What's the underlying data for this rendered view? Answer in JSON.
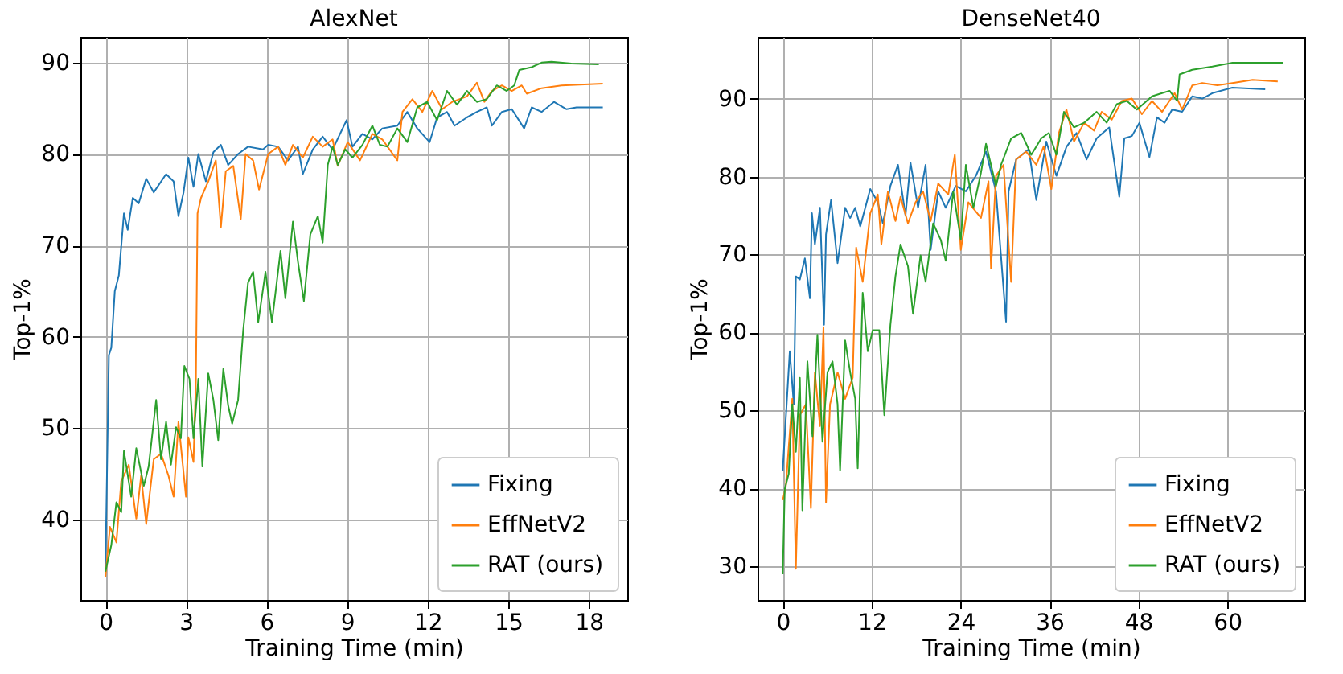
{
  "chart_data": [
    {
      "type": "line",
      "title": "AlexNet",
      "xlabel": "Training Time (min)",
      "ylabel": "Top-1%",
      "xlim": [
        -0.93,
        19.43
      ],
      "ylim": [
        31.2,
        92.8
      ],
      "xticks": [
        0,
        3,
        6,
        9,
        12,
        15,
        18
      ],
      "yticks": [
        40,
        50,
        60,
        70,
        80,
        90
      ],
      "grid": true,
      "legend": "bottom right",
      "series": [
        {
          "name": "Fixing",
          "color": "#1f77b4",
          "x": [
            0,
            0.13,
            0.22,
            0.35,
            0.5,
            0.69,
            0.83,
            1.02,
            1.24,
            1.52,
            1.8,
            2.26,
            2.54,
            2.72,
            2.91,
            3.09,
            3.28,
            3.46,
            3.74,
            4.02,
            4.3,
            4.57,
            4.94,
            5.31,
            5.87,
            6.06,
            6.43,
            6.8,
            7.17,
            7.35,
            7.72,
            8.09,
            8.46,
            8.98,
            9.2,
            9.57,
            9.94,
            10.31,
            10.87,
            11.24,
            11.61,
            12.07,
            12.35,
            12.72,
            13,
            13.46,
            13.83,
            14.2,
            14.39,
            14.76,
            15.13,
            15.59,
            15.87,
            16.24,
            16.7,
            17.17,
            17.54,
            18.52
          ],
          "values": [
            34.3,
            58,
            58.8,
            65,
            66.7,
            73.5,
            71.7,
            75.2,
            74.6,
            77.3,
            75.8,
            77.8,
            77,
            73.2,
            75.8,
            79.6,
            76.4,
            80,
            77,
            80.2,
            81,
            78.8,
            80,
            80.8,
            80.5,
            81,
            80.8,
            79.3,
            80.8,
            77.8,
            80.5,
            81.9,
            80.5,
            83.7,
            80.8,
            82.2,
            81.6,
            82.8,
            83.1,
            84.6,
            82.8,
            81.3,
            84,
            84.6,
            83.1,
            84,
            84.6,
            85.1,
            83.1,
            84.6,
            84.9,
            82.8,
            85.1,
            84.6,
            85.7,
            84.9,
            85.1,
            85.1
          ]
        },
        {
          "name": "EffNetV2",
          "color": "#ff7f0e",
          "x": [
            0,
            0.17,
            0.41,
            0.59,
            0.87,
            1.15,
            1.33,
            1.52,
            1.8,
            2.07,
            2.35,
            2.54,
            2.72,
            3,
            3.09,
            3.28,
            3.37,
            3.43,
            3.56,
            3.83,
            4.11,
            4.3,
            4.48,
            4.76,
            5.04,
            5.22,
            5.5,
            5.72,
            6.06,
            6.43,
            6.7,
            6.98,
            7.35,
            7.72,
            8.09,
            8.46,
            8.65,
            9.02,
            9.48,
            9.94,
            10.31,
            10.87,
            11.06,
            11.43,
            11.8,
            12.17,
            12.54,
            12.91,
            13.46,
            13.83,
            14.11,
            14.39,
            14.76,
            15.13,
            15.5,
            15.69,
            16.24,
            16.98,
            18.52
          ],
          "values": [
            33.7,
            39.2,
            37.5,
            44.2,
            46,
            40.1,
            44.8,
            39.5,
            46.6,
            47.2,
            44.8,
            42.5,
            50.7,
            42.5,
            49,
            46.3,
            55.4,
            73.5,
            75.2,
            77,
            79.3,
            72,
            78.1,
            78.7,
            72.9,
            80,
            79.3,
            76.1,
            80,
            80.8,
            78.8,
            81,
            79.6,
            81.9,
            80.8,
            81.6,
            78.7,
            81.3,
            79.3,
            82.2,
            81.6,
            79.3,
            84.6,
            86,
            84.6,
            86.9,
            84.9,
            85.7,
            86.3,
            87.8,
            85.7,
            86.9,
            87.5,
            86.9,
            87.5,
            86.6,
            87.2,
            87.5,
            87.7
          ]
        },
        {
          "name": "RAT (ours)",
          "color": "#2ca02c",
          "x": [
            0,
            0.22,
            0.41,
            0.59,
            0.69,
            0.96,
            1.15,
            1.43,
            1.61,
            1.89,
            2.07,
            2.26,
            2.44,
            2.63,
            2.81,
            2.94,
            3.13,
            3.28,
            3.46,
            3.61,
            3.83,
            4.02,
            4.2,
            4.39,
            4.57,
            4.72,
            4.94,
            5.13,
            5.31,
            5.5,
            5.69,
            5.96,
            6.2,
            6.52,
            6.7,
            6.98,
            7.17,
            7.39,
            7.63,
            7.91,
            8.09,
            8.28,
            8.46,
            8.65,
            8.93,
            9.2,
            9.57,
            9.94,
            10.22,
            10.5,
            10.87,
            11.24,
            11.61,
            11.98,
            12.35,
            12.72,
            13.09,
            13.46,
            13.83,
            14.2,
            14.57,
            14.94,
            15.22,
            15.41,
            15.87,
            16.24,
            16.61,
            17.35,
            18.37
          ],
          "values": [
            34.3,
            37.2,
            41.9,
            40.8,
            47.5,
            42.5,
            47.8,
            43.7,
            45.8,
            53.1,
            46.6,
            50.7,
            46,
            50.1,
            48.9,
            56.8,
            55.4,
            48.9,
            55.4,
            45.8,
            56,
            53.1,
            48.7,
            56.5,
            52.5,
            50.5,
            53.1,
            60.7,
            65.9,
            67.1,
            61.6,
            67.1,
            61.6,
            69.4,
            64.2,
            72.6,
            68.2,
            63.9,
            71.2,
            73.2,
            70.3,
            78.8,
            80.8,
            78.8,
            80.5,
            79.6,
            81,
            83.1,
            81,
            80.8,
            82.8,
            81.3,
            85.1,
            85.7,
            83.7,
            86.9,
            85.4,
            86.9,
            85.7,
            86,
            87.5,
            86.9,
            87.5,
            89.2,
            89.5,
            90,
            90.1,
            89.9,
            89.8
          ]
        }
      ]
    },
    {
      "type": "line",
      "title": "DenseNet40",
      "xlabel": "Training Time (min)",
      "ylabel": "Top-1%",
      "xlim": [
        -3.4,
        70.4
      ],
      "ylim": [
        25.7,
        97.9
      ],
      "xticks": [
        0,
        12,
        24,
        36,
        48,
        60
      ],
      "yticks": [
        30,
        40,
        50,
        60,
        70,
        80,
        90
      ],
      "grid": true,
      "legend": "bottom right",
      "series": [
        {
          "name": "Fixing",
          "color": "#1f77b4",
          "x": [
            0,
            0.95,
            1.49,
            1.77,
            2.31,
            2.99,
            3.67,
            3.94,
            4.34,
            5.02,
            5.57,
            5.84,
            6.52,
            7.4,
            8.42,
            9.1,
            9.78,
            10.46,
            11.81,
            12.83,
            13.51,
            14.53,
            15.55,
            16.57,
            17.24,
            18.26,
            19.28,
            19.96,
            20.98,
            22,
            23.35,
            24.71,
            26.07,
            27.43,
            28.78,
            30.14,
            30.48,
            31.5,
            33.2,
            34.22,
            35.57,
            36.93,
            38.29,
            39.65,
            41,
            42.36,
            44.06,
            45.42,
            46.1,
            47.12,
            48.13,
            49.49,
            50.51,
            51.53,
            52.55,
            53.9,
            55.26,
            56.62,
            57.98,
            60.69,
            65.11
          ],
          "values": [
            42.3,
            57.6,
            50.8,
            67.2,
            66.8,
            69.5,
            64.4,
            75.3,
            71.3,
            76,
            61,
            72.6,
            77,
            68.9,
            76,
            74.7,
            76,
            73.6,
            78.4,
            76.7,
            74,
            78.8,
            81.5,
            75,
            81.8,
            76,
            81.5,
            70.6,
            78.1,
            76,
            78.8,
            78.1,
            80.1,
            83.2,
            78.1,
            61.4,
            78.1,
            82.2,
            83.5,
            77,
            84.5,
            80.1,
            83.8,
            85.6,
            82.2,
            84.9,
            86.3,
            77.4,
            84.9,
            85.2,
            86.9,
            82.5,
            87.6,
            86.9,
            88.6,
            88.3,
            90.3,
            90,
            90.7,
            91.4,
            91.2
          ]
        },
        {
          "name": "EffNetV2",
          "color": "#ff7f0e",
          "x": [
            0,
            0.41,
            1.29,
            1.77,
            2.31,
            3.12,
            3.8,
            4.34,
            5.02,
            5.5,
            5.84,
            6.38,
            7.4,
            8.42,
            9.44,
            9.91,
            10.79,
            11.81,
            12.83,
            13.31,
            14.19,
            15.21,
            15.89,
            16.9,
            17.92,
            18.94,
            19.96,
            20.98,
            22.34,
            23.22,
            24.03,
            25.05,
            26.75,
            27.77,
            28.11,
            28.78,
            29.8,
            30.82,
            31.5,
            32.86,
            34.22,
            35.23,
            36.25,
            37.27,
            38.29,
            39.31,
            40.67,
            42.02,
            43.04,
            44.4,
            45.76,
            47.12,
            48.47,
            49.83,
            51.19,
            52.89,
            53.9,
            55.26,
            56.62,
            58.66,
            60.69,
            63.41,
            66.8
          ],
          "values": [
            38.5,
            40.2,
            51.5,
            29.7,
            49.4,
            50.8,
            37.5,
            54.9,
            48,
            60.7,
            38.2,
            50.8,
            54.9,
            51.5,
            54.2,
            70.9,
            66.5,
            75.3,
            77.7,
            71.3,
            78.1,
            74.3,
            77.4,
            74,
            76.7,
            78.1,
            74.3,
            79.1,
            77.7,
            82.8,
            70.6,
            76.7,
            74.7,
            79.4,
            68.2,
            80.1,
            81.5,
            66.5,
            82.2,
            83.2,
            81.5,
            83.9,
            78.4,
            85.6,
            88.6,
            84.5,
            86.9,
            85.9,
            88.3,
            87.3,
            89.7,
            90,
            88,
            89.7,
            88.3,
            90.7,
            88.6,
            91.7,
            92,
            91.7,
            92,
            92.4,
            92.2
          ]
        },
        {
          "name": "RAT (ours)",
          "color": "#2ca02c",
          "x": [
            0,
            0.27,
            0.81,
            1.29,
            1.77,
            2.31,
            2.65,
            3.33,
            4.01,
            4.68,
            5.36,
            6.04,
            6.72,
            7.4,
            7.74,
            8.42,
            9.1,
            9.78,
            10.12,
            10.79,
            11.47,
            12.15,
            13.03,
            13.71,
            14.53,
            15.21,
            15.89,
            16.9,
            17.58,
            18.6,
            19.28,
            20.3,
            21.32,
            22,
            23.01,
            24.03,
            24.71,
            25.73,
            26.75,
            27.43,
            28.78,
            29.46,
            30.82,
            32.18,
            33.54,
            34.89,
            35.91,
            36.93,
            37.95,
            39.31,
            40.67,
            42.36,
            43.72,
            45.08,
            46.44,
            47.79,
            49.83,
            51.19,
            52.21,
            53.22,
            53.56,
            55.26,
            57.98,
            60.69,
            67.48
          ],
          "values": [
            29,
            39.9,
            41.9,
            50.8,
            44.7,
            54.2,
            37.2,
            56.3,
            46.7,
            59.7,
            46,
            54.9,
            56.3,
            50.8,
            42.3,
            59,
            54.9,
            51.5,
            42.6,
            65.1,
            57.6,
            60.3,
            60.3,
            49.4,
            61,
            67.2,
            71.3,
            68.5,
            62.4,
            69.9,
            66.5,
            74,
            71.9,
            69.2,
            78.1,
            71.9,
            81.5,
            76,
            80.5,
            84.2,
            78.8,
            81.5,
            84.9,
            85.6,
            82.8,
            84.9,
            85.6,
            82.8,
            88.3,
            86.3,
            86.9,
            88.3,
            86.9,
            89.3,
            89.7,
            88.6,
            90.3,
            90.7,
            91,
            89.7,
            93.1,
            93.7,
            94.1,
            94.6,
            94.6
          ]
        }
      ]
    }
  ]
}
